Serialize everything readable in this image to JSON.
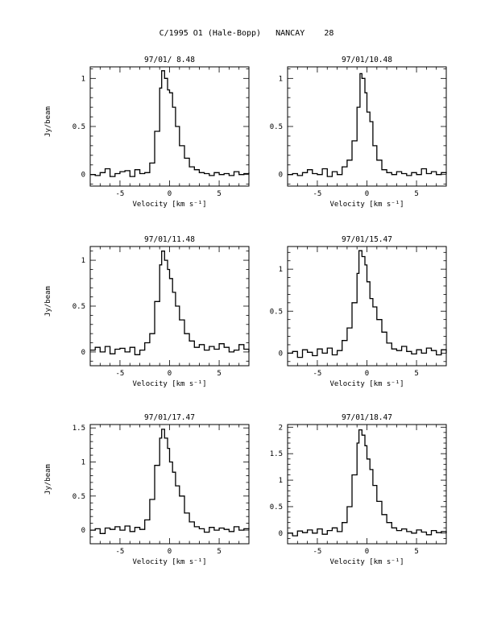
{
  "figure": {
    "title": "C/1995 O1 (Hale-Bopp)   NANCAY    28"
  },
  "chart_data": [
    {
      "type": "line",
      "title": "97/01/ 8.48",
      "xlabel": "Velocity [km s⁻¹]",
      "ylabel": "Jy/beam",
      "xlim": [
        -8,
        8
      ],
      "ylim": [
        -0.12,
        1.12
      ],
      "xticks": [
        -5,
        0,
        5
      ],
      "yticks": [
        0,
        0.5,
        1
      ],
      "xticklabels": [
        "-5",
        "0",
        "5"
      ],
      "yticklabels": [
        "0",
        "0.5",
        "1"
      ],
      "x": [
        -8,
        -7.5,
        -7,
        -6.5,
        -6,
        -5.5,
        -5,
        -4.5,
        -4,
        -3.5,
        -3,
        -2.5,
        -2,
        -1.5,
        -1,
        -0.8,
        -0.5,
        -0.2,
        0,
        0.3,
        0.6,
        1,
        1.5,
        2,
        2.5,
        3,
        3.5,
        4,
        4.5,
        5,
        5.5,
        6,
        6.5,
        7,
        7.5,
        8
      ],
      "y": [
        0,
        -0.01,
        0.02,
        0.06,
        -0.02,
        0.01,
        0.03,
        0.04,
        -0.02,
        0.05,
        0.01,
        0.02,
        0.12,
        0.45,
        0.9,
        1.08,
        1.0,
        0.88,
        0.85,
        0.7,
        0.5,
        0.3,
        0.17,
        0.08,
        0.05,
        0.02,
        0.01,
        -0.01,
        0.02,
        0.0,
        0.01,
        -0.01,
        0.03,
        0.0,
        0.01,
        0.02
      ]
    },
    {
      "type": "line",
      "title": "97/01/10.48",
      "xlabel": "Velocity [km s⁻¹]",
      "ylabel": "",
      "xlim": [
        -8,
        8
      ],
      "ylim": [
        -0.12,
        1.12
      ],
      "xticks": [
        -5,
        0,
        5
      ],
      "yticks": [
        0,
        0.5,
        1
      ],
      "xticklabels": [
        "-5",
        "0",
        "5"
      ],
      "yticklabels": [
        "0",
        "0.5",
        "1"
      ],
      "x": [
        -8,
        -7.5,
        -7,
        -6.5,
        -6,
        -5.5,
        -5,
        -4.5,
        -4,
        -3.5,
        -3,
        -2.5,
        -2,
        -1.5,
        -1,
        -0.7,
        -0.5,
        -0.2,
        0,
        0.3,
        0.6,
        1,
        1.5,
        2,
        2.5,
        3,
        3.5,
        4,
        4.5,
        5,
        5.5,
        6,
        6.5,
        7,
        7.5,
        8
      ],
      "y": [
        0,
        0.01,
        -0.01,
        0.02,
        0.05,
        0.01,
        0.0,
        0.06,
        -0.02,
        0.03,
        0.0,
        0.08,
        0.15,
        0.35,
        0.7,
        1.05,
        1.0,
        0.85,
        0.65,
        0.55,
        0.3,
        0.15,
        0.05,
        0.02,
        0.0,
        0.03,
        0.01,
        -0.01,
        0.02,
        0.0,
        0.06,
        0.01,
        0.03,
        0.0,
        0.02,
        0.01
      ]
    },
    {
      "type": "line",
      "title": "97/01/11.48",
      "xlabel": "Velocity [km s⁻¹]",
      "ylabel": "Jy/beam",
      "xlim": [
        -8,
        8
      ],
      "ylim": [
        -0.15,
        1.15
      ],
      "xticks": [
        -5,
        0,
        5
      ],
      "yticks": [
        0,
        0.5,
        1
      ],
      "xticklabels": [
        "-5",
        "0",
        "5"
      ],
      "yticklabels": [
        "0",
        "0.5",
        "1"
      ],
      "x": [
        -8,
        -7.5,
        -7,
        -6.5,
        -6,
        -5.5,
        -5,
        -4.5,
        -4,
        -3.5,
        -3,
        -2.5,
        -2,
        -1.5,
        -1,
        -0.8,
        -0.5,
        -0.2,
        0,
        0.3,
        0.6,
        1,
        1.5,
        2,
        2.5,
        3,
        3.5,
        4,
        4.5,
        5,
        5.5,
        6,
        6.5,
        7,
        7.5,
        8
      ],
      "y": [
        0.02,
        0.05,
        0.0,
        0.06,
        -0.02,
        0.03,
        0.04,
        0.0,
        0.05,
        -0.03,
        0.02,
        0.1,
        0.2,
        0.55,
        0.95,
        1.1,
        1.0,
        0.9,
        0.8,
        0.65,
        0.5,
        0.35,
        0.2,
        0.12,
        0.05,
        0.08,
        0.02,
        0.06,
        0.03,
        0.09,
        0.05,
        0.0,
        0.02,
        0.08,
        0.03,
        0.0
      ]
    },
    {
      "type": "line",
      "title": "97/01/15.47",
      "xlabel": "Velocity [km s⁻¹]",
      "ylabel": "",
      "xlim": [
        -8,
        8
      ],
      "ylim": [
        -0.15,
        1.27
      ],
      "xticks": [
        -5,
        0,
        5
      ],
      "yticks": [
        0,
        0.5,
        1
      ],
      "xticklabels": [
        "-5",
        "0",
        "5"
      ],
      "yticklabels": [
        "0",
        "0.5",
        "1"
      ],
      "x": [
        -8,
        -7.5,
        -7,
        -6.5,
        -6,
        -5.5,
        -5,
        -4.5,
        -4,
        -3.5,
        -3,
        -2.5,
        -2,
        -1.5,
        -1,
        -0.8,
        -0.5,
        -0.2,
        0,
        0.3,
        0.6,
        1,
        1.5,
        2,
        2.5,
        3,
        3.5,
        4,
        4.5,
        5,
        5.5,
        6,
        6.5,
        7,
        7.5,
        8
      ],
      "y": [
        0.0,
        0.02,
        -0.05,
        0.04,
        0.01,
        -0.03,
        0.05,
        0.0,
        0.06,
        -0.02,
        0.03,
        0.15,
        0.3,
        0.6,
        0.95,
        1.22,
        1.15,
        1.05,
        0.85,
        0.65,
        0.55,
        0.4,
        0.25,
        0.12,
        0.05,
        0.03,
        0.08,
        0.02,
        -0.01,
        0.04,
        0.0,
        0.06,
        0.03,
        -0.02,
        0.04,
        0.0
      ]
    },
    {
      "type": "line",
      "title": "97/01/17.47",
      "xlabel": "Velocity [km s⁻¹]",
      "ylabel": "Jy/beam",
      "xlim": [
        -8,
        8
      ],
      "ylim": [
        -0.2,
        1.55
      ],
      "xticks": [
        -5,
        0,
        5
      ],
      "yticks": [
        0,
        0.5,
        1,
        1.5
      ],
      "xticklabels": [
        "-5",
        "0",
        "5"
      ],
      "yticklabels": [
        "0",
        "0.5",
        "1",
        "1.5"
      ],
      "x": [
        -8,
        -7.5,
        -7,
        -6.5,
        -6,
        -5.5,
        -5,
        -4.5,
        -4,
        -3.5,
        -3,
        -2.5,
        -2,
        -1.5,
        -1,
        -0.8,
        -0.5,
        -0.2,
        0,
        0.3,
        0.6,
        1,
        1.5,
        2,
        2.5,
        3,
        3.5,
        4,
        4.5,
        5,
        5.5,
        6,
        6.5,
        7,
        7.5,
        8
      ],
      "y": [
        0.0,
        0.02,
        -0.05,
        0.03,
        0.01,
        0.05,
        0.0,
        0.06,
        -0.02,
        0.04,
        0.01,
        0.15,
        0.45,
        0.95,
        1.35,
        1.48,
        1.35,
        1.2,
        1.0,
        0.85,
        0.65,
        0.5,
        0.25,
        0.12,
        0.05,
        0.02,
        -0.03,
        0.04,
        0.0,
        0.03,
        0.01,
        -0.02,
        0.05,
        0.0,
        0.02,
        0.01
      ]
    },
    {
      "type": "line",
      "title": "97/01/18.47",
      "xlabel": "Velocity [km s⁻¹]",
      "ylabel": "",
      "xlim": [
        -8,
        8
      ],
      "ylim": [
        -0.2,
        2.05
      ],
      "xticks": [
        -5,
        0,
        5
      ],
      "yticks": [
        0,
        0.5,
        1,
        1.5,
        2
      ],
      "xticklabels": [
        "-5",
        "0",
        "5"
      ],
      "yticklabels": [
        "0",
        "0.5",
        "1",
        "1.5",
        "2"
      ],
      "x": [
        -8,
        -7.5,
        -7,
        -6.5,
        -6,
        -5.5,
        -5,
        -4.5,
        -4,
        -3.5,
        -3,
        -2.5,
        -2,
        -1.5,
        -1,
        -0.8,
        -0.5,
        -0.2,
        0,
        0.3,
        0.6,
        1,
        1.5,
        2,
        2.5,
        3,
        3.5,
        4,
        4.5,
        5,
        5.5,
        6,
        6.5,
        7,
        7.5,
        8
      ],
      "y": [
        0.0,
        -0.05,
        0.04,
        0.01,
        0.06,
        0.0,
        0.08,
        -0.02,
        0.05,
        0.1,
        0.03,
        0.2,
        0.5,
        1.1,
        1.7,
        1.95,
        1.85,
        1.65,
        1.4,
        1.2,
        0.9,
        0.6,
        0.35,
        0.2,
        0.1,
        0.05,
        0.08,
        0.03,
        0.0,
        0.06,
        0.02,
        -0.03,
        0.05,
        0.01,
        0.03,
        0.0
      ]
    }
  ]
}
